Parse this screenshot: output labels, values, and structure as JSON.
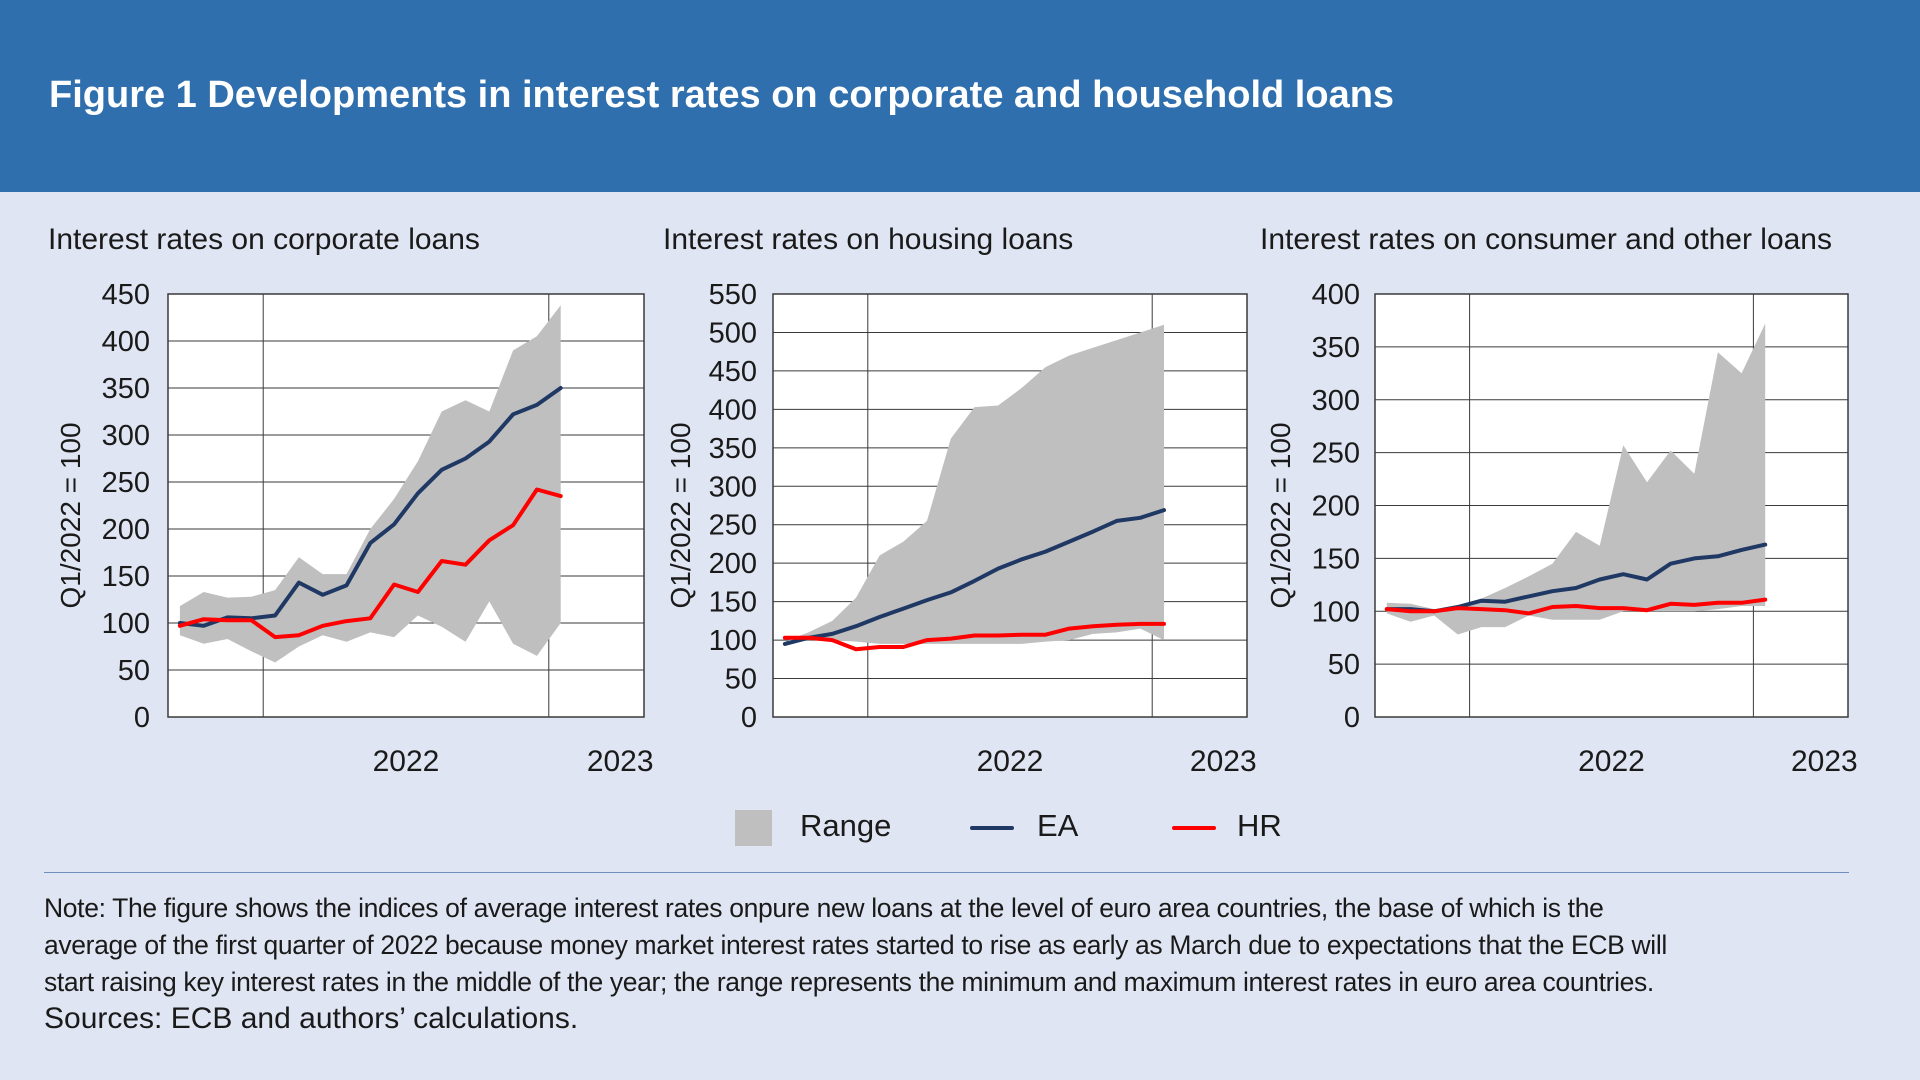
{
  "figure_title": "Figure 1 Developments in interest rates on corporate and household loans",
  "colors": {
    "header_bg": "#2f6fae",
    "page_bg": "#dfe5f2",
    "range": "#bfbfbf",
    "EA": "#1f3864",
    "HR": "#ff0000"
  },
  "legend": {
    "range_label": "Range",
    "ea_label": "EA",
    "hr_label": "HR"
  },
  "note": {
    "lines": [
      "Note: The figure shows the indices of average interest rates onpure new loans at the level of euro area countries, the base of which is the",
      "average of the first quarter of 2022 because money market interest rates started to rise as early as March due to expectations that the ECB will",
      "start raising key interest rates in the middle of the year; the range represents the minimum and maximum interest rates in euro area countries."
    ],
    "sources": "Sources: ECB and authors’ calculations."
  },
  "chart_data": [
    {
      "type": "area",
      "title": "Interest rates on corporate loans",
      "ylabel": "Q1/2022 = 100",
      "ylim": [
        0,
        450
      ],
      "yticks": [
        0,
        50,
        100,
        150,
        200,
        250,
        300,
        350,
        400,
        450
      ],
      "year_labels": [
        "2022",
        "2023"
      ],
      "grid": true,
      "periods": 20,
      "series": [
        {
          "name": "Range",
          "kind": "band",
          "lower": [
            87,
            78,
            83,
            70,
            58,
            75,
            87,
            80,
            90,
            85,
            108,
            96,
            80,
            123,
            78,
            65,
            100
          ],
          "upper": [
            118,
            133,
            127,
            128,
            135,
            170,
            152,
            152,
            200,
            232,
            272,
            325,
            337,
            325,
            390,
            405,
            438
          ]
        },
        {
          "name": "EA",
          "kind": "line",
          "values": [
            100,
            97,
            106,
            105,
            108,
            143,
            130,
            140,
            185,
            205,
            238,
            263,
            275,
            293,
            322,
            332,
            350
          ]
        },
        {
          "name": "HR",
          "kind": "line",
          "values": [
            97,
            104,
            103,
            103,
            85,
            87,
            97,
            102,
            105,
            141,
            133,
            166,
            162,
            188,
            204,
            242,
            235
          ]
        }
      ]
    },
    {
      "type": "area",
      "title": "Interest rates on housing loans",
      "ylabel": "Q1/2022 = 100",
      "ylim": [
        0,
        550
      ],
      "yticks": [
        0,
        50,
        100,
        150,
        200,
        250,
        300,
        350,
        400,
        450,
        500,
        550
      ],
      "year_labels": [
        "2022",
        "2023"
      ],
      "grid": true,
      "periods": 20,
      "series": [
        {
          "name": "Range",
          "kind": "band",
          "lower": [
            98,
            100,
            100,
            98,
            95,
            95,
            95,
            95,
            95,
            95,
            95,
            98,
            100,
            108,
            110,
            115,
            100
          ],
          "upper": [
            98,
            110,
            125,
            155,
            210,
            228,
            255,
            362,
            403,
            405,
            428,
            455,
            470,
            480,
            490,
            500,
            510
          ]
        },
        {
          "name": "EA",
          "kind": "line",
          "values": [
            95,
            103,
            108,
            118,
            130,
            141,
            152,
            162,
            177,
            193,
            205,
            215,
            228,
            241,
            255,
            259,
            269
          ]
        },
        {
          "name": "HR",
          "kind": "line",
          "values": [
            103,
            103,
            100,
            88,
            91,
            91,
            100,
            102,
            106,
            106,
            107,
            107,
            115,
            118,
            120,
            121,
            121
          ]
        }
      ]
    },
    {
      "type": "area",
      "title": "Interest rates on consumer and other loans",
      "ylabel": "Q1/2022 = 100",
      "ylim": [
        0,
        400
      ],
      "yticks": [
        0,
        50,
        100,
        150,
        200,
        250,
        300,
        350,
        400
      ],
      "year_labels": [
        "2022",
        "2023"
      ],
      "grid": true,
      "periods": 20,
      "series": [
        {
          "name": "Range",
          "kind": "band",
          "lower": [
            98,
            90,
            96,
            78,
            85,
            85,
            96,
            92,
            92,
            92,
            100,
            100,
            100,
            100,
            102,
            105,
            105
          ],
          "upper": [
            108,
            107,
            102,
            103,
            112,
            122,
            133,
            145,
            175,
            162,
            257,
            222,
            252,
            230,
            345,
            325,
            372
          ]
        },
        {
          "name": "EA",
          "kind": "line",
          "values": [
            102,
            102,
            100,
            104,
            110,
            109,
            114,
            119,
            122,
            130,
            135,
            130,
            145,
            150,
            152,
            158,
            163
          ]
        },
        {
          "name": "HR",
          "kind": "line",
          "values": [
            102,
            100,
            100,
            103,
            102,
            101,
            98,
            104,
            105,
            103,
            103,
            101,
            107,
            106,
            108,
            108,
            111
          ]
        }
      ]
    }
  ]
}
